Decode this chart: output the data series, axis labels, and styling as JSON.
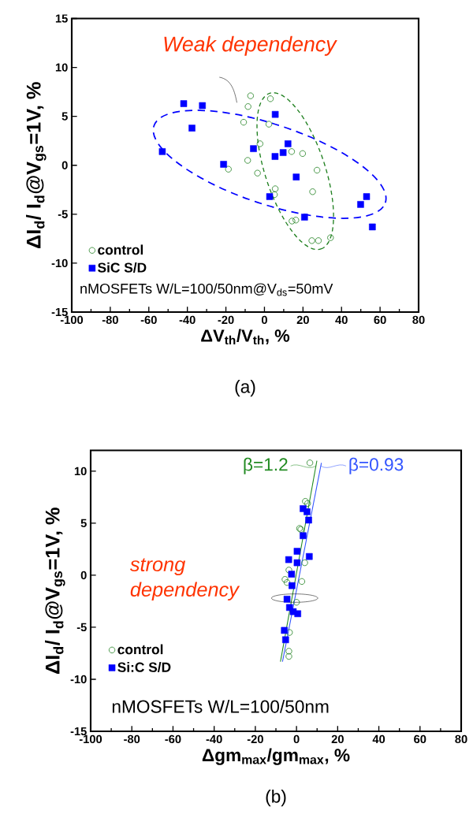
{
  "chart_data": [
    {
      "type": "scatter",
      "title": "(a)",
      "xlabel": "ΔV$_{th}$/V$_{th}$, %",
      "ylabel": "ΔI$_{d}$/ I$_{d}$@V$_{gs}$=1V, %",
      "xlim": [
        -100,
        80
      ],
      "ylim": [
        -15,
        15
      ],
      "xticks": [
        -100,
        -80,
        -60,
        -40,
        -20,
        0,
        20,
        40,
        60,
        80
      ],
      "yticks": [
        -15,
        -10,
        -5,
        0,
        5,
        10,
        15
      ],
      "legend": "bottom left",
      "annotations": [
        "Weak dependency",
        "nMOSFETs W/L=100/50nm@V$_{ds}$=50mV"
      ],
      "series": [
        {
          "name": "control",
          "color": "#208020",
          "marker": "circle",
          "x": [
            -7.2,
            3.1,
            -8.5,
            -10.8,
            2.3,
            -2.3,
            14.1,
            19.8,
            -8.7,
            -18.7,
            -3.6,
            27.3,
            5.6,
            5.2,
            25.0,
            14.3,
            16.3,
            24.6,
            28.0,
            34.3
          ],
          "values": [
            7.1,
            6.8,
            6.0,
            4.4,
            4.2,
            2.2,
            1.4,
            1.2,
            0.5,
            -0.4,
            -0.8,
            -0.5,
            -2.4,
            -3.0,
            -2.7,
            -5.7,
            -5.6,
            -7.7,
            -7.7,
            -7.4
          ]
        },
        {
          "name": "SiC S/D",
          "color": "#0000ff",
          "marker": "square",
          "x": [
            -41.9,
            -32.2,
            -37.6,
            -53.0,
            -21.2,
            -5.7,
            5.6,
            12.2,
            9.7,
            5.5,
            16.5,
            2.7,
            20.8,
            49.9,
            53.0,
            56.0
          ],
          "values": [
            6.3,
            6.1,
            3.8,
            1.4,
            0.1,
            1.7,
            5.2,
            2.2,
            1.3,
            0.9,
            -1.2,
            -3.2,
            -5.3,
            -4.0,
            -3.2,
            -6.3
          ]
        }
      ]
    },
    {
      "type": "scatter",
      "title": "(b)",
      "xlabel": "Δgm$_{max}$/gm$_{max}$, %",
      "ylabel": "ΔI$_{d}$/ I$_{d}$@V$_{gs}$=1V, %",
      "xlim": [
        -100,
        80
      ],
      "ylim": [
        -15,
        12
      ],
      "xticks": [
        -100,
        -80,
        -60,
        -40,
        -20,
        0,
        20,
        40,
        60,
        80
      ],
      "yticks": [
        -15,
        -10,
        -5,
        0,
        5,
        10
      ],
      "legend": "bottom left",
      "annotations": [
        "strong dependency",
        "nMOSFETs W/L=100/50nm",
        {
          "text": "β=1.2",
          "x": 9.4,
          "y": 10.5
        },
        {
          "text": "β=0.93",
          "x": 11.8,
          "y": 10.5
        }
      ],
      "series": [
        {
          "name": "control",
          "color": "#208020",
          "marker": "circle",
          "x": [
            6.5,
            4.3,
            5.4,
            1.5,
            2.1,
            4.0,
            -3.7,
            -5.6,
            -4.6,
            2.6,
            0.0,
            -3.4,
            -3.7,
            -3.7
          ],
          "values": [
            10.8,
            7.1,
            6.9,
            4.5,
            4.4,
            1.2,
            0.5,
            -0.4,
            -0.7,
            -0.6,
            -2.6,
            -5.5,
            -7.3,
            -7.8
          ]
        },
        {
          "name": "Si:C S/D",
          "color": "#0000ff",
          "marker": "square",
          "x": [
            3.2,
            5.1,
            5.9,
            3.2,
            0.3,
            6.2,
            -3.8,
            0.3,
            -2.4,
            -2.2,
            -4.6,
            -3.4,
            -1.6,
            0.6,
            -5.9,
            -5.3
          ],
          "values": [
            6.4,
            6.1,
            5.3,
            3.8,
            2.3,
            1.8,
            1.5,
            1.2,
            0.1,
            -1.0,
            -2.3,
            -3.1,
            -3.5,
            -3.7,
            -5.3,
            -6.2
          ]
        },
        {
          "type": "line",
          "color": "#228b22",
          "marker": "none",
          "x": [
            -7.8,
            9.9
          ],
          "values": [
            -8.3,
            11.0
          ]
        },
        {
          "type": "line",
          "color": "#3355ff",
          "marker": "none",
          "x": [
            -6.8,
            12.1
          ],
          "values": [
            -8.3,
            10.8
          ]
        }
      ]
    }
  ]
}
